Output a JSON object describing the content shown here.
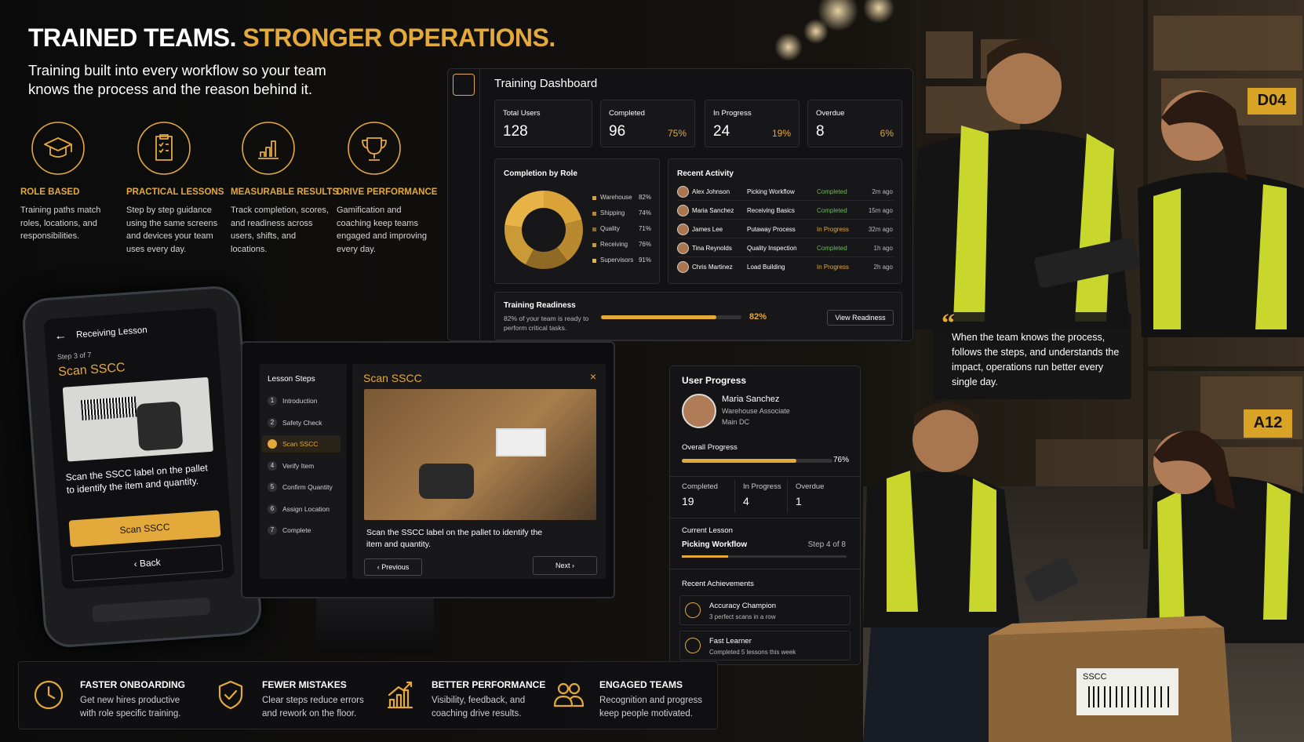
{
  "header": {
    "title_white": "TRAINED TEAMS.",
    "title_gold": "STRONGER OPERATIONS.",
    "subtitle": "Training built into every workflow so your team knows the process and the reason behind it."
  },
  "features": [
    {
      "title": "ROLE BASED",
      "text": "Training paths match roles, locations, and responsibilities."
    },
    {
      "title": "PRACTICAL LESSONS",
      "text": "Step by step guidance using the same screens and devices your team uses every day."
    },
    {
      "title": "MEASURABLE RESULTS",
      "text": "Track completion, scores, and readiness across users, shifts, and locations."
    },
    {
      "title": "DRIVE PERFORMANCE",
      "text": "Gamification and coaching keep teams engaged and improving every day."
    }
  ],
  "dashboard": {
    "title": "Training Dashboard",
    "stats": [
      {
        "label": "Total Users",
        "value": "128"
      },
      {
        "label": "Completed",
        "value": "96",
        "percent": "75%"
      },
      {
        "label": "In Progress",
        "value": "24",
        "percent": "19%"
      },
      {
        "label": "Overdue",
        "value": "8",
        "percent": "6%"
      }
    ],
    "completion": {
      "title": "Completion by Role",
      "roles": [
        {
          "name": "Warehouse",
          "value": "82%"
        },
        {
          "name": "Shipping",
          "value": "74%"
        },
        {
          "name": "Quality",
          "value": "71%"
        },
        {
          "name": "Receiving",
          "value": "76%"
        },
        {
          "name": "Supervisors",
          "value": "91%"
        }
      ]
    },
    "activity": {
      "title": "Recent Activity",
      "rows": [
        {
          "name": "Alex Johnson",
          "lesson": "Picking Workflow",
          "status": "Completed",
          "time": "2m ago"
        },
        {
          "name": "Maria Sanchez",
          "lesson": "Receiving Basics",
          "status": "Completed",
          "time": "15m ago"
        },
        {
          "name": "James Lee",
          "lesson": "Putaway Process",
          "status": "In Progress",
          "time": "32m ago"
        },
        {
          "name": "Tina Reynolds",
          "lesson": "Quality Inspection",
          "status": "Completed",
          "time": "1h ago"
        },
        {
          "name": "Chris Martinez",
          "lesson": "Load Building",
          "status": "In Progress",
          "time": "2h ago"
        }
      ]
    },
    "readiness": {
      "title": "Training Readiness",
      "text": "82% of your team is ready to perform critical tasks.",
      "value": "82%",
      "button": "View Readiness"
    }
  },
  "phone": {
    "title": "Receiving Lesson",
    "step": "Step 3 of 7",
    "heading": "Scan SSCC",
    "text": "Scan the SSCC label on the pallet to identify the item and quantity.",
    "button": "Scan SSCC",
    "back": "Back"
  },
  "lesson": {
    "steps_title": "Lesson Steps",
    "steps": [
      {
        "num": "1",
        "label": "Introduction"
      },
      {
        "num": "2",
        "label": "Safety Check"
      },
      {
        "label": "Scan SSCC"
      },
      {
        "num": "4",
        "label": "Verify Item"
      },
      {
        "num": "5",
        "label": "Confirm Quantity"
      },
      {
        "num": "6",
        "label": "Assign Location"
      },
      {
        "num": "7",
        "label": "Complete"
      }
    ],
    "heading": "Scan SSCC",
    "text": "Scan the SSCC label on the pallet to identify the item and quantity.",
    "previous": "Previous",
    "next": "Next"
  },
  "user_progress": {
    "title": "User Progress",
    "name": "Maria Sanchez",
    "role": "Warehouse Associate",
    "location": "Main DC",
    "overall_label": "Overall Progress",
    "overall": "76%",
    "counts": [
      {
        "label": "Completed",
        "value": "19"
      },
      {
        "label": "In Progress",
        "value": "4"
      },
      {
        "label": "Overdue",
        "value": "1"
      }
    ],
    "current_label": "Current Lesson",
    "current_lesson": "Picking Workflow",
    "current_step": "Step 4 of 8",
    "achievements_title": "Recent Achievements",
    "achievements": [
      {
        "title": "Accuracy Champion",
        "text": "3 perfect scans in a row"
      },
      {
        "title": "Fast Learner",
        "text": "Completed 5 lessons this week"
      }
    ]
  },
  "quote": "When the team knows the process, follows the steps, and understands the impact, operations run better every single day.",
  "benefits": [
    {
      "title": "FASTER ONBOARDING",
      "text": "Get new hires productive with role specific training."
    },
    {
      "title": "FEWER MISTAKES",
      "text": "Clear steps reduce errors and rework on the floor."
    },
    {
      "title": "BETTER PERFORMANCE",
      "text": "Visibility, feedback, and coaching drive results."
    },
    {
      "title": "ENGAGED TEAMS",
      "text": "Recognition and progress keep people motivated."
    }
  ],
  "scene_labels": {
    "aisle_1": "D04",
    "aisle_2": "A12",
    "box": "SSCC"
  }
}
